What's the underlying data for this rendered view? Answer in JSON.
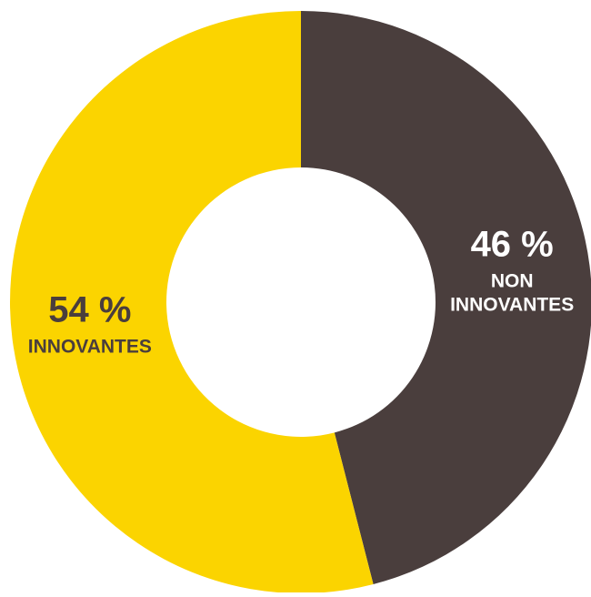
{
  "chart_data": {
    "type": "pie",
    "variant": "donut",
    "title": "",
    "slices": [
      {
        "value_label": "46 %",
        "label_lines": [
          "NON",
          "INNOVANTES"
        ],
        "value": 46,
        "color": "#4a3e3d",
        "label_color": "#ffffff"
      },
      {
        "value_label": "54 %",
        "label_lines": [
          "INNOVANTES"
        ],
        "value": 54,
        "color": "#fbd400",
        "label_color": "#4a3e3d"
      }
    ],
    "start_angle": "12 o'clock",
    "direction": "clockwise",
    "legend": "none"
  }
}
